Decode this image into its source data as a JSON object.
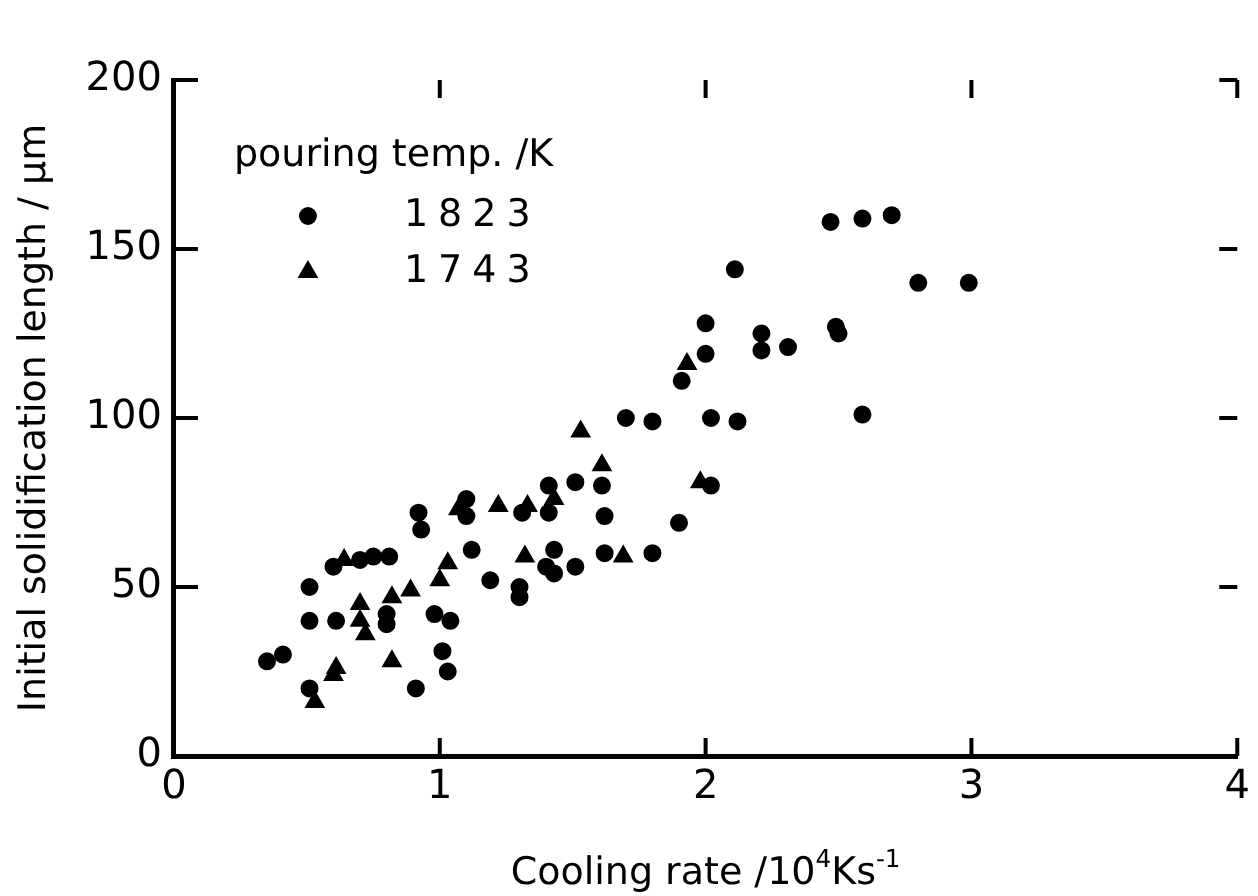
{
  "chart_data": {
    "type": "scatter",
    "xlabel": "Cooling rate /10$^{4}$Ks$^{-1}$",
    "ylabel": "Initial solidification length / μm",
    "legend_title": "pouring temp. /K",
    "legend": "top left",
    "grid": false,
    "xlim": [
      0,
      4
    ],
    "xticks": [
      0,
      1,
      2,
      3,
      4
    ],
    "ylim": [
      0,
      200
    ],
    "yticks": [
      0,
      50,
      100,
      150,
      200
    ],
    "series": [
      {
        "name": "1823",
        "color": "#000000",
        "marker": "circle",
        "x": [
          0.35,
          0.41,
          0.51,
          0.51,
          0.51,
          0.61,
          0.6,
          0.7,
          0.75,
          0.81,
          0.8,
          0.8,
          0.91,
          0.92,
          0.93,
          0.98,
          1.04,
          1.01,
          1.03,
          1.1,
          1.1,
          1.12,
          1.19,
          1.3,
          1.3,
          1.31,
          1.41,
          1.41,
          1.43,
          1.4,
          1.43,
          1.51,
          1.51,
          1.61,
          1.62,
          1.62,
          1.8,
          1.9,
          1.7,
          1.8,
          2.02,
          2.12,
          2.59,
          2.02,
          2.47,
          2.59,
          2.7,
          2.11,
          2.8,
          2.99,
          2.0,
          2.0,
          1.91,
          2.21,
          2.21,
          2.31,
          2.49,
          2.5
        ],
        "values": [
          28,
          30,
          20,
          40,
          50,
          40,
          56,
          58,
          59,
          59,
          42,
          39,
          20,
          72,
          67,
          42,
          40,
          31,
          25,
          76,
          71,
          61,
          52,
          50,
          47,
          72,
          80,
          72,
          61,
          56,
          54,
          56,
          81,
          80,
          71,
          60,
          60,
          69,
          100,
          99,
          100,
          99,
          101,
          80,
          158,
          159,
          160,
          144,
          140,
          140,
          128,
          119,
          111,
          125,
          120,
          121,
          127,
          125
        ]
      },
      {
        "name": "1743",
        "color": "#000000",
        "marker": "triangle",
        "x": [
          0.53,
          0.6,
          0.61,
          0.64,
          0.7,
          0.7,
          0.72,
          0.82,
          0.82,
          0.89,
          1.0,
          1.03,
          1.07,
          1.22,
          1.32,
          1.33,
          1.43,
          1.53,
          1.61,
          1.69,
          1.98,
          1.93
        ],
        "values": [
          16,
          24,
          26,
          58,
          45,
          40,
          36,
          47,
          28,
          49,
          52,
          57,
          73,
          74,
          59,
          74,
          76,
          96,
          86,
          59,
          81,
          116
        ]
      }
    ]
  }
}
